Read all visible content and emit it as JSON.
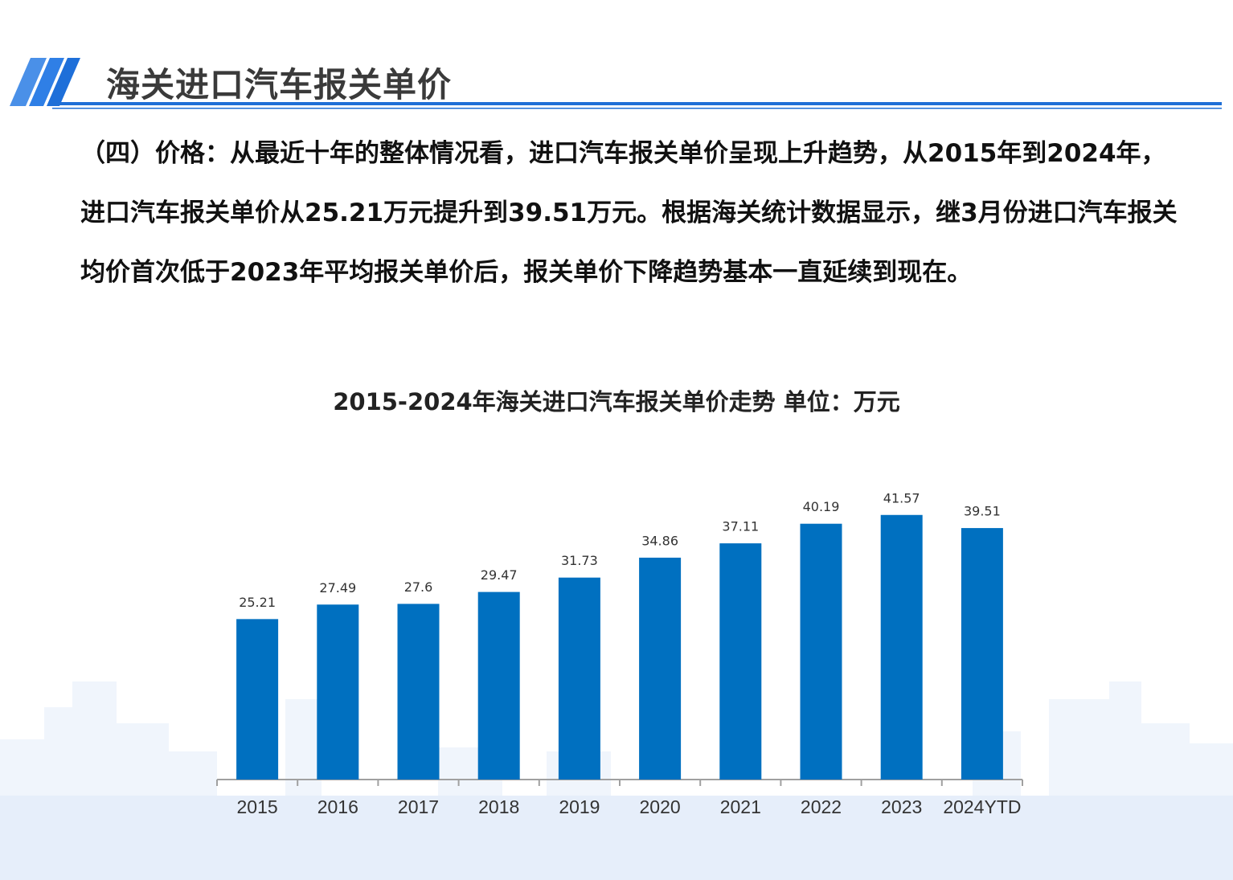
{
  "header": {
    "title": "海关进口汽车报关单价"
  },
  "paragraph": {
    "lines": [
      "（四）价格：从最近十年的整体情况看，进口汽车报关单价呈现上升趋势，从2015年到2024年，",
      "进口汽车报关单价从25.21万元提升到39.51万元。根据海关统计数据显示，继3月份进口汽车报关",
      "均价首次低于2023年平均报关单价后，报关单价下降趋势基本一直延续到现在。"
    ]
  },
  "chart_data": {
    "type": "bar",
    "title": "2015-2024年海关进口汽车报关单价走势  单位：万元",
    "categories": [
      "2015",
      "2016",
      "2017",
      "2018",
      "2019",
      "2020",
      "2021",
      "2022",
      "2023",
      "2024YTD"
    ],
    "values": [
      25.21,
      27.49,
      27.6,
      29.47,
      31.73,
      34.86,
      37.11,
      40.19,
      41.57,
      39.51
    ],
    "color": "#0070c0",
    "ylim": [
      0,
      50
    ]
  }
}
